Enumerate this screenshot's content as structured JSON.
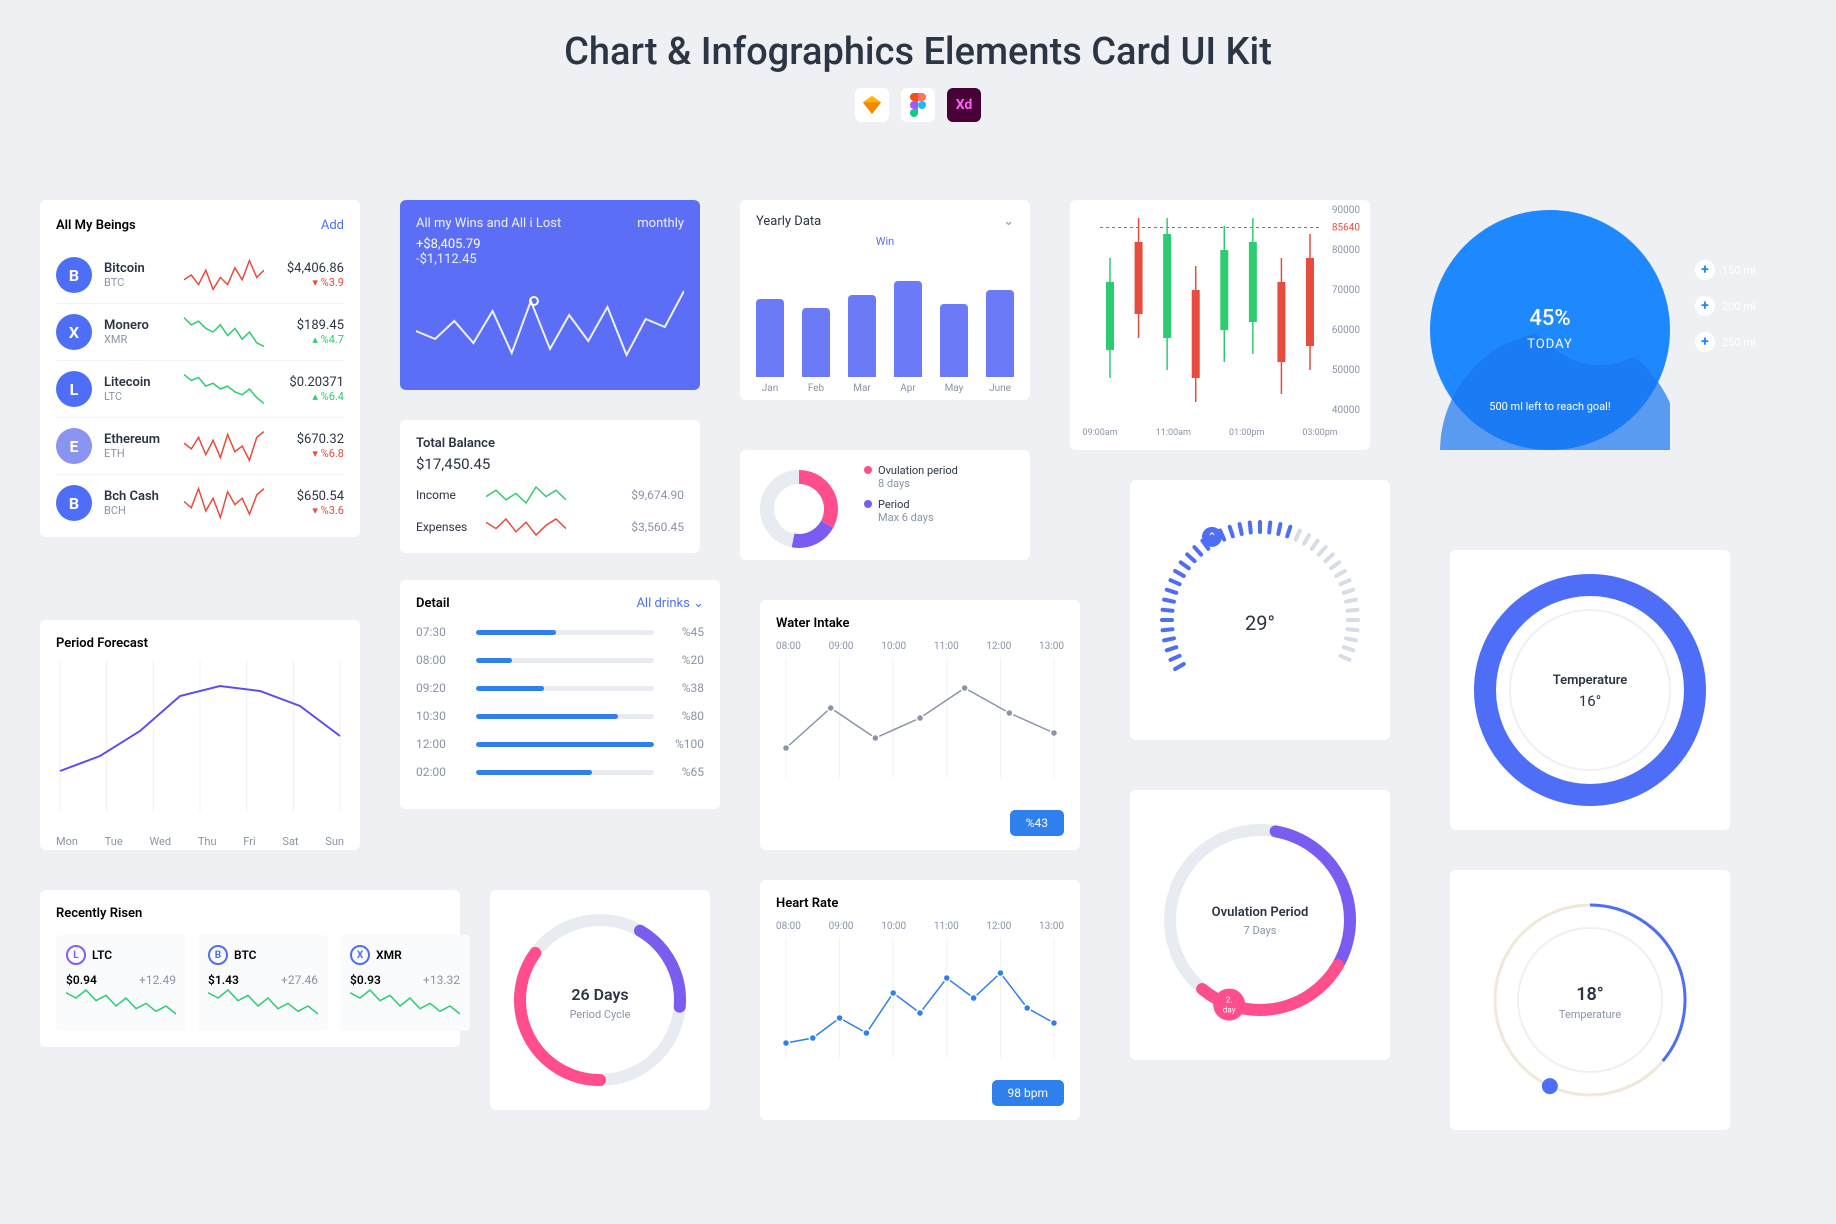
{
  "page_title": "Chart & Infographics Elements Card UI Kit",
  "tools": [
    {
      "name": "sketch",
      "bg": "#fff",
      "fill": "#fdb300"
    },
    {
      "name": "figma",
      "bg": "#fff"
    },
    {
      "name": "xd",
      "bg": "#470137",
      "text": "Xd",
      "textcolor": "#ff61f6"
    }
  ],
  "crypto": {
    "title": "All My Beings",
    "action": "Add",
    "action_color": "#4f6ef7",
    "coins": [
      {
        "name": "Bitcoin",
        "sym": "BTC",
        "price": "$4,406.86",
        "delta": "%3.9",
        "dir": "down",
        "color": "#4f6ef7",
        "spark": [
          14,
          18,
          10,
          22,
          6,
          16,
          10,
          24,
          14,
          30,
          16,
          22
        ],
        "spark_color": "#e74c3c"
      },
      {
        "name": "Monero",
        "sym": "XMR",
        "price": "$189.45",
        "delta": "%4.7",
        "dir": "up",
        "color": "#4f6ef7",
        "spark": [
          24,
          20,
          22,
          18,
          16,
          20,
          14,
          18,
          12,
          16,
          10,
          8
        ],
        "spark_color": "#2ecc71"
      },
      {
        "name": "Litecoin",
        "sym": "LTC",
        "price": "$0.20371",
        "delta": "%6.4",
        "dir": "up",
        "color": "#4f6ef7",
        "spark": [
          26,
          22,
          24,
          18,
          20,
          16,
          18,
          14,
          12,
          16,
          10,
          6
        ],
        "spark_color": "#2ecc71"
      },
      {
        "name": "Ethereum",
        "sym": "ETH",
        "price": "$670.32",
        "delta": "%6.8",
        "dir": "down",
        "color": "#8a94f0",
        "spark": [
          20,
          16,
          24,
          12,
          22,
          10,
          26,
          14,
          18,
          8,
          24,
          28
        ],
        "spark_color": "#e74c3c"
      },
      {
        "name": "Bch Cash",
        "sym": "BCH",
        "price": "$650.54",
        "delta": "%3.6",
        "dir": "down",
        "color": "#4f6ef7",
        "spark": [
          18,
          14,
          26,
          12,
          20,
          8,
          24,
          16,
          20,
          10,
          22,
          26
        ],
        "spark_color": "#e74c3c"
      }
    ]
  },
  "wins": {
    "title": "All my Wins and All i Lost",
    "period": "monthly",
    "pos": "+$8,405.79",
    "neg": "-$1,112.45",
    "bg": "#5b6ef5",
    "line_color": "#ffffff",
    "points": [
      60,
      68,
      50,
      72,
      40,
      82,
      30,
      78,
      44,
      70,
      36,
      84,
      48,
      56,
      20
    ]
  },
  "yearly": {
    "title": "Yearly Data",
    "win_label": "Win",
    "win_color": "#5b6ef5",
    "bar_color": "#6b7bf7",
    "months": [
      "Jan",
      "Feb",
      "Mar",
      "Apr",
      "May",
      "June"
    ],
    "values": [
      85,
      75,
      90,
      105,
      80,
      95
    ],
    "max": 120
  },
  "candle": {
    "y_labels": [
      "90000",
      "80000",
      "85640",
      "70000",
      "60000",
      "50000",
      "40000"
    ],
    "x_labels": [
      "09:00am",
      "11:00am",
      "01:00pm",
      "03:00pm"
    ],
    "ref_line": 85640,
    "y_min": 40000,
    "y_max": 90000,
    "items": [
      {
        "x": 0,
        "lo": 48000,
        "hi": 78000,
        "open": 55000,
        "close": 72000,
        "color": "#2ecc71"
      },
      {
        "x": 1,
        "lo": 58000,
        "hi": 88000,
        "open": 82000,
        "close": 64000,
        "color": "#e74c3c"
      },
      {
        "x": 2,
        "lo": 50000,
        "hi": 88000,
        "open": 58000,
        "close": 84000,
        "color": "#2ecc71"
      },
      {
        "x": 3,
        "lo": 42000,
        "hi": 76000,
        "open": 70000,
        "close": 48000,
        "color": "#e74c3c"
      },
      {
        "x": 4,
        "lo": 52000,
        "hi": 86000,
        "open": 60000,
        "close": 80000,
        "color": "#2ecc71"
      },
      {
        "x": 5,
        "lo": 54000,
        "hi": 88000,
        "open": 62000,
        "close": 82000,
        "color": "#2ecc71"
      },
      {
        "x": 6,
        "lo": 44000,
        "hi": 78000,
        "open": 72000,
        "close": 52000,
        "color": "#e74c3c"
      },
      {
        "x": 7,
        "lo": 50000,
        "hi": 84000,
        "open": 78000,
        "close": 56000,
        "color": "#e74c3c"
      }
    ]
  },
  "progress_circle": {
    "percent": "45%",
    "today": "TODAY",
    "caption": "500 ml left to reach goal!",
    "bg": "#1e88ff",
    "wave": "#1976f0",
    "buttons": [
      {
        "label": "150 ml"
      },
      {
        "label": "200 ml"
      },
      {
        "label": "250 ml"
      }
    ],
    "btn_bg": "#ffffff",
    "btn_fg": "#1e88ff"
  },
  "balance": {
    "title": "Total Balance",
    "amount": "$17,450.45",
    "rows": [
      {
        "label": "Income",
        "value": "$9,674.90",
        "spark_color": "#2ecc71",
        "spark": [
          10,
          14,
          8,
          12,
          6,
          16,
          10,
          14,
          8
        ]
      },
      {
        "label": "Expenses",
        "value": "$3,560.45",
        "spark_color": "#e74c3c",
        "spark": [
          14,
          10,
          16,
          8,
          14,
          6,
          12,
          16,
          10
        ]
      }
    ]
  },
  "ovulation_donut": {
    "colors": [
      "#ff4d8d",
      "#7a5cf0",
      "#e8ebf1"
    ],
    "values": [
      33,
      20,
      47
    ],
    "legend": [
      {
        "dot": "#ff4d8d",
        "title": "Ovulation period",
        "sub": "8 days"
      },
      {
        "dot": "#7a5cf0",
        "title": "Period",
        "sub": "Max 6 days"
      }
    ]
  },
  "detail": {
    "title": "Detail",
    "filter": "All drinks",
    "filter_color": "#4f6ef7",
    "bar_color": "#2f80ed",
    "rows": [
      {
        "time": "07:30",
        "pct": 45
      },
      {
        "time": "08:00",
        "pct": 20
      },
      {
        "time": "09:20",
        "pct": 38
      },
      {
        "time": "10:30",
        "pct": 80
      },
      {
        "time": "12:00",
        "pct": 100
      },
      {
        "time": "02:00",
        "pct": 65
      }
    ]
  },
  "forecast": {
    "title": "Period Forecast",
    "days": [
      "Mon",
      "Tue",
      "Wed",
      "Thu",
      "Fri",
      "Sat",
      "Sun"
    ],
    "line_color": "#5b4df0",
    "values": [
      110,
      95,
      70,
      35,
      25,
      30,
      45,
      75
    ]
  },
  "risen": {
    "title": "Recently Risen",
    "items": [
      {
        "sym": "LTC",
        "price": "$0.94",
        "delta": "+12.49",
        "color": "#8a5cf0",
        "spark": "#2ecc71"
      },
      {
        "sym": "BTC",
        "price": "$1.43",
        "delta": "+27.46",
        "color": "#4f6ef7",
        "spark": "#2ecc71"
      },
      {
        "sym": "XMR",
        "price": "$0.93",
        "delta": "+13.32",
        "color": "#4f6ef7",
        "spark": "#2ecc71"
      }
    ]
  },
  "cycle": {
    "value": "26 Days",
    "sub": "Period Cycle",
    "seg1": "#ff4d8d",
    "seg2": "#7a5cf0",
    "bg": "#e8ebf1",
    "seg1_pct": 35,
    "seg2_pct": 18
  },
  "water": {
    "title": "Water Intake",
    "hours": [
      "08:00",
      "09:00",
      "10:00",
      "11:00",
      "12:00",
      "13:00"
    ],
    "points": [
      90,
      50,
      80,
      60,
      30,
      55,
      75
    ],
    "line_color": "#8a94a6",
    "dot_color": "#8a94a6",
    "badge": "%43",
    "badge_bg": "#2f80ed"
  },
  "heart": {
    "title": "Heart Rate",
    "hours": [
      "08:00",
      "09:00",
      "10:00",
      "11:00",
      "12:00",
      "13:00"
    ],
    "points": [
      105,
      100,
      80,
      95,
      55,
      75,
      40,
      60,
      35,
      70,
      85
    ],
    "line_color": "#2f80ed",
    "dot_color": "#2f80ed",
    "badge": "98 bpm",
    "badge_bg": "#2f80ed"
  },
  "gauge29": {
    "value": "29°",
    "arc_color": "#4f6ef7",
    "track_color": "#d8dce6",
    "handle_color": "#4f6ef7",
    "handle_angle": -30
  },
  "ovu_circle": {
    "value": "Ovulation Period",
    "sub": "7 Days",
    "handle_label": "2. day",
    "seg1": "#7a5cf0",
    "seg2": "#ff4d8d",
    "track": "#e8ebf1"
  },
  "temp1": {
    "ring": "#4f6ef7",
    "label": "Temperature",
    "value": "16°"
  },
  "temp2": {
    "ring": "#4f6ef7",
    "track": "#f0e8d8",
    "value": "18°",
    "label": "Temperature"
  }
}
